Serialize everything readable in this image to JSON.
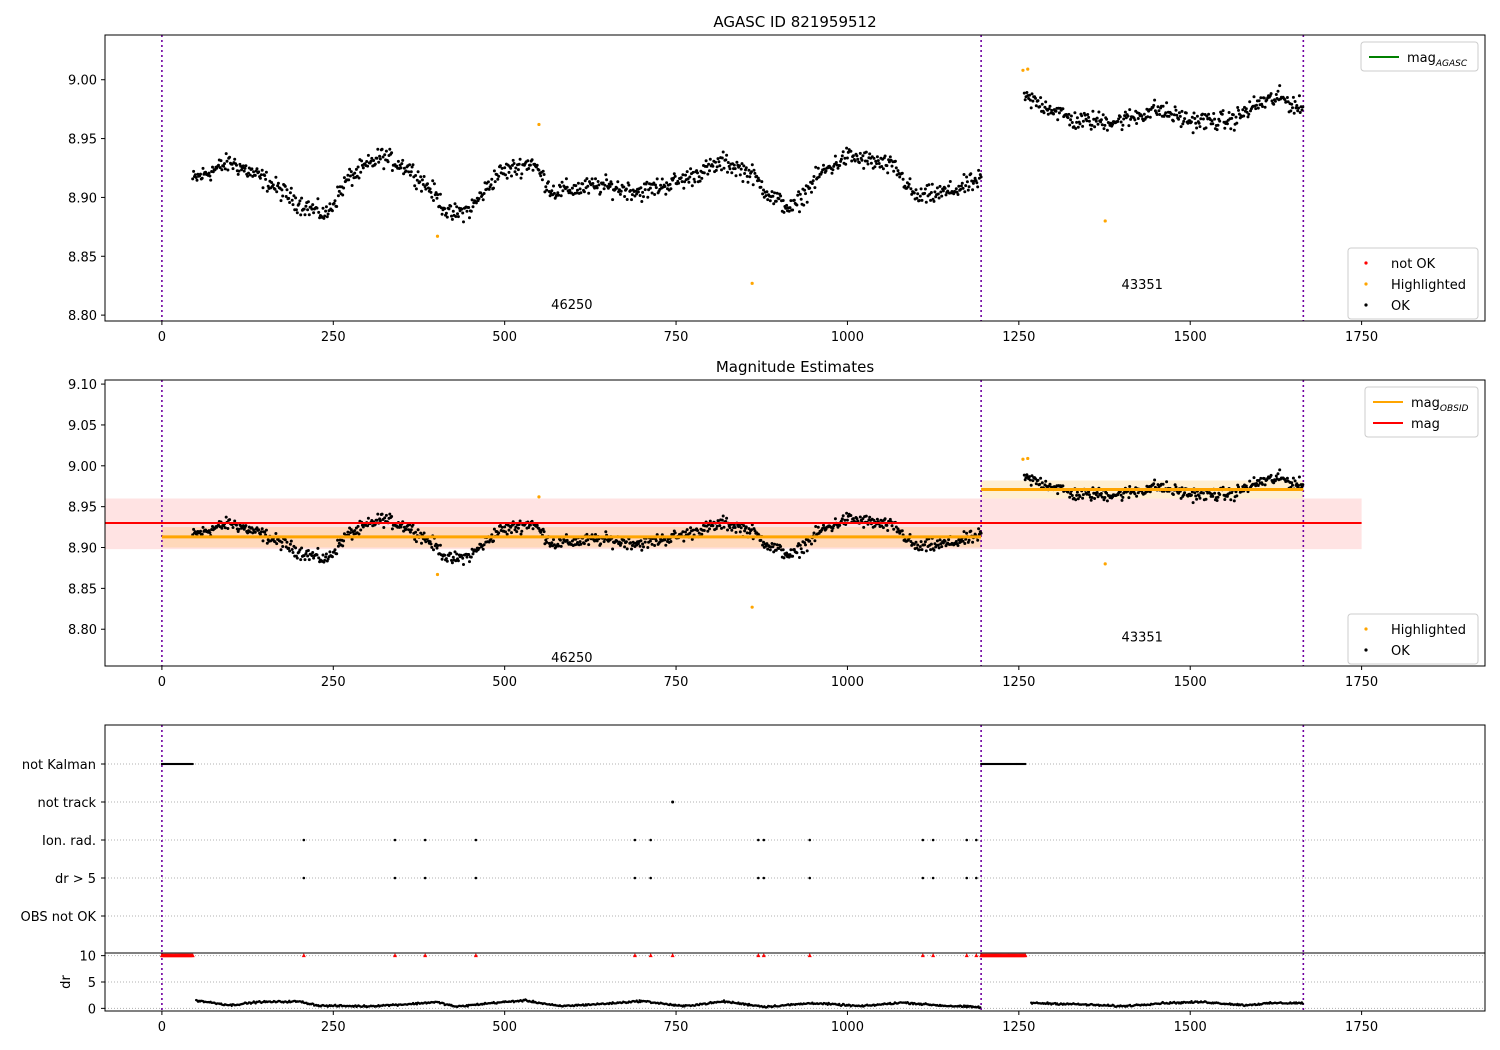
{
  "figure": {
    "title_top": "AGASC ID 821959512",
    "title_mid": "Magnitude Estimates"
  },
  "chart_data": [
    {
      "type": "scatter",
      "title": "AGASC ID 821959512",
      "xlim": [
        -83,
        1930
      ],
      "ylim": [
        8.795,
        9.038
      ],
      "xticks": [
        0,
        250,
        500,
        750,
        1000,
        1250,
        1500,
        1750
      ],
      "yticks": [
        8.8,
        8.85,
        8.9,
        8.95,
        9.0
      ],
      "obsid_boundaries": [
        0,
        1195,
        1665
      ],
      "obsid_labels": [
        {
          "text": "46250",
          "x": 598,
          "y": 8.805
        },
        {
          "text": "43351",
          "x": 1430,
          "y": 8.822
        }
      ],
      "legend_top_right": [
        {
          "name": "mag_AGASC",
          "label": "mag",
          "sub": "AGASC",
          "color": "#008000"
        }
      ],
      "legend_bottom_right": [
        {
          "name": "not OK",
          "color": "#ff0000"
        },
        {
          "name": "Highlighted",
          "color": "#ffa500"
        },
        {
          "name": "OK",
          "color": "#000000"
        }
      ],
      "segments": [
        {
          "obsid": "46250",
          "x_range": [
            45,
            1195
          ],
          "y_points": [
            [
              45,
              8.915
            ],
            [
              100,
              8.93
            ],
            [
              150,
              8.915
            ],
            [
              200,
              8.895
            ],
            [
              240,
              8.885
            ],
            [
              270,
              8.915
            ],
            [
              320,
              8.935
            ],
            [
              360,
              8.925
            ],
            [
              395,
              8.905
            ],
            [
              420,
              8.885
            ],
            [
              450,
              8.89
            ],
            [
              490,
              8.92
            ],
            [
              540,
              8.93
            ],
            [
              570,
              8.905
            ],
            [
              640,
              8.91
            ],
            [
              700,
              8.905
            ],
            [
              760,
              8.915
            ],
            [
              820,
              8.93
            ],
            [
              860,
              8.92
            ],
            [
              890,
              8.9
            ],
            [
              920,
              8.89
            ],
            [
              960,
              8.92
            ],
            [
              1000,
              8.935
            ],
            [
              1040,
              8.93
            ],
            [
              1070,
              8.925
            ],
            [
              1100,
              8.9
            ],
            [
              1150,
              8.905
            ],
            [
              1195,
              8.915
            ]
          ]
        },
        {
          "obsid": "43351",
          "x_range": [
            1258,
            1665
          ],
          "y_points": [
            [
              1258,
              8.985
            ],
            [
              1300,
              8.975
            ],
            [
              1330,
              8.965
            ],
            [
              1400,
              8.965
            ],
            [
              1450,
              8.975
            ],
            [
              1500,
              8.965
            ],
            [
              1560,
              8.965
            ],
            [
              1600,
              8.98
            ],
            [
              1630,
              8.985
            ],
            [
              1665,
              8.975
            ]
          ]
        }
      ],
      "highlighted_points": [
        [
          402,
          8.867
        ],
        [
          550,
          8.962
        ],
        [
          861,
          8.827
        ],
        [
          1256,
          9.008
        ],
        [
          1263,
          9.009
        ],
        [
          1376,
          8.88
        ]
      ]
    },
    {
      "type": "scatter",
      "title": "Magnitude Estimates",
      "xlim": [
        -83,
        1930
      ],
      "ylim": [
        8.755,
        9.105
      ],
      "xticks": [
        0,
        250,
        500,
        750,
        1000,
        1250,
        1500,
        1750
      ],
      "yticks": [
        8.8,
        8.85,
        8.9,
        8.95,
        9.0,
        9.05,
        9.1
      ],
      "obsid_boundaries": [
        0,
        1195,
        1665
      ],
      "obsid_labels": [
        {
          "text": "46250",
          "x": 598,
          "y": 8.76
        },
        {
          "text": "43351",
          "x": 1430,
          "y": 8.785
        }
      ],
      "legend_top_right": [
        {
          "name": "mag_OBSID",
          "label": "mag",
          "sub": "OBSID",
          "color": "#ffa500"
        },
        {
          "name": "mag",
          "label": "mag",
          "sub": "",
          "color": "#ff0000"
        }
      ],
      "legend_bottom_right": [
        {
          "name": "Highlighted",
          "color": "#ffa500"
        },
        {
          "name": "OK",
          "color": "#000000"
        }
      ],
      "mag_overall": {
        "value": 8.93,
        "band": [
          8.898,
          8.96
        ],
        "x_range": [
          -83,
          1750
        ],
        "color": "#ff0000"
      },
      "mag_obsid": [
        {
          "x_range": [
            0,
            1195
          ],
          "value": 8.913,
          "band": [
            8.9,
            8.925
          ]
        },
        {
          "x_range": [
            1195,
            1665
          ],
          "value": 8.971,
          "band": [
            8.96,
            8.982
          ]
        }
      ]
    },
    {
      "type": "scatter",
      "title": "",
      "xlim": [
        -83,
        1930
      ],
      "flag_rows": [
        "not Kalman",
        "not track",
        "Ion. rad.",
        "dr > 5",
        "OBS not OK"
      ],
      "not_kalman_ranges": [
        [
          0,
          45
        ],
        [
          1195,
          1260
        ]
      ],
      "not_track_x": [
        745
      ],
      "ion_rad_x": [
        207,
        340,
        384,
        458,
        690,
        713,
        870,
        878,
        945,
        1110,
        1125,
        1174,
        1188
      ],
      "dr_gt5_x": [
        207,
        340,
        384,
        458,
        690,
        713,
        870,
        878,
        945,
        1110,
        1125,
        1174,
        1188
      ]
    },
    {
      "type": "line",
      "title": "",
      "ylabel": "dr",
      "xlim": [
        -83,
        1930
      ],
      "ylim": [
        -0.5,
        10.5
      ],
      "yticks": [
        0,
        5,
        10
      ],
      "xticks": [
        0,
        250,
        500,
        750,
        1000,
        1250,
        1500,
        1750
      ],
      "dr_clip_value": 10,
      "dr_clipped_x": [
        207,
        340,
        384,
        458,
        690,
        713,
        745,
        870,
        878,
        945,
        1110,
        1125,
        1174,
        1188
      ],
      "dr_points": [
        [
          50,
          1.5
        ],
        [
          100,
          0.6
        ],
        [
          140,
          1.2
        ],
        [
          200,
          1.3
        ],
        [
          230,
          0.5
        ],
        [
          300,
          0.4
        ],
        [
          360,
          0.8
        ],
        [
          400,
          1.2
        ],
        [
          430,
          0.3
        ],
        [
          480,
          1.0
        ],
        [
          530,
          1.5
        ],
        [
          580,
          0.4
        ],
        [
          650,
          0.9
        ],
        [
          700,
          1.4
        ],
        [
          760,
          0.4
        ],
        [
          820,
          1.3
        ],
        [
          880,
          0.3
        ],
        [
          950,
          1.0
        ],
        [
          1020,
          0.4
        ],
        [
          1080,
          1.1
        ],
        [
          1140,
          0.5
        ],
        [
          1195,
          0.2
        ],
        [
          1270,
          1.0
        ],
        [
          1330,
          0.8
        ],
        [
          1400,
          0.4
        ],
        [
          1460,
          1.0
        ],
        [
          1520,
          1.2
        ],
        [
          1580,
          0.6
        ],
        [
          1620,
          1.0
        ],
        [
          1665,
          1.0
        ]
      ]
    }
  ]
}
